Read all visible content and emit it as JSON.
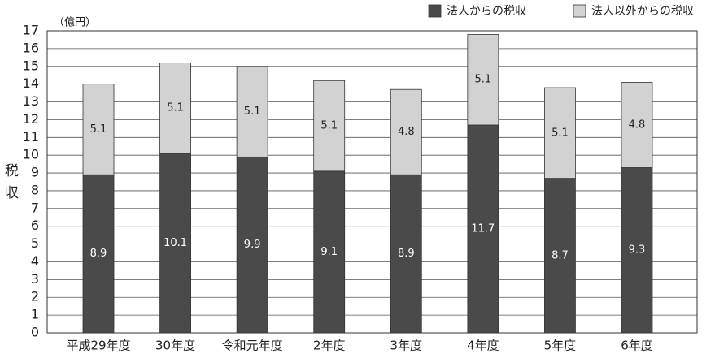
{
  "chart_data": {
    "type": "stacked_bar",
    "unit_label": "（億円）",
    "y_label": "税収",
    "categories": [
      "平成29年度",
      "30年度",
      "令和元年度",
      "2年度",
      "3年度",
      "4年度",
      "5年度",
      "6年度"
    ],
    "series": [
      {
        "name": "法人からの税収",
        "color": "#4a4a4a",
        "label_color": "#ffffff",
        "values": [
          8.9,
          10.1,
          9.9,
          9.1,
          8.9,
          11.7,
          8.7,
          9.3
        ]
      },
      {
        "name": "法人以外からの税収",
        "color": "#d2d2d2",
        "label_color": "#222222",
        "values": [
          5.1,
          5.1,
          5.1,
          5.1,
          4.8,
          5.1,
          5.1,
          4.8
        ]
      }
    ],
    "ylim": [
      0,
      17
    ],
    "yticks": [
      0,
      1,
      2,
      3,
      4,
      5,
      6,
      7,
      8,
      9,
      10,
      11,
      12,
      13,
      14,
      15,
      16,
      17
    ],
    "grid": true,
    "legend": "top-right"
  }
}
